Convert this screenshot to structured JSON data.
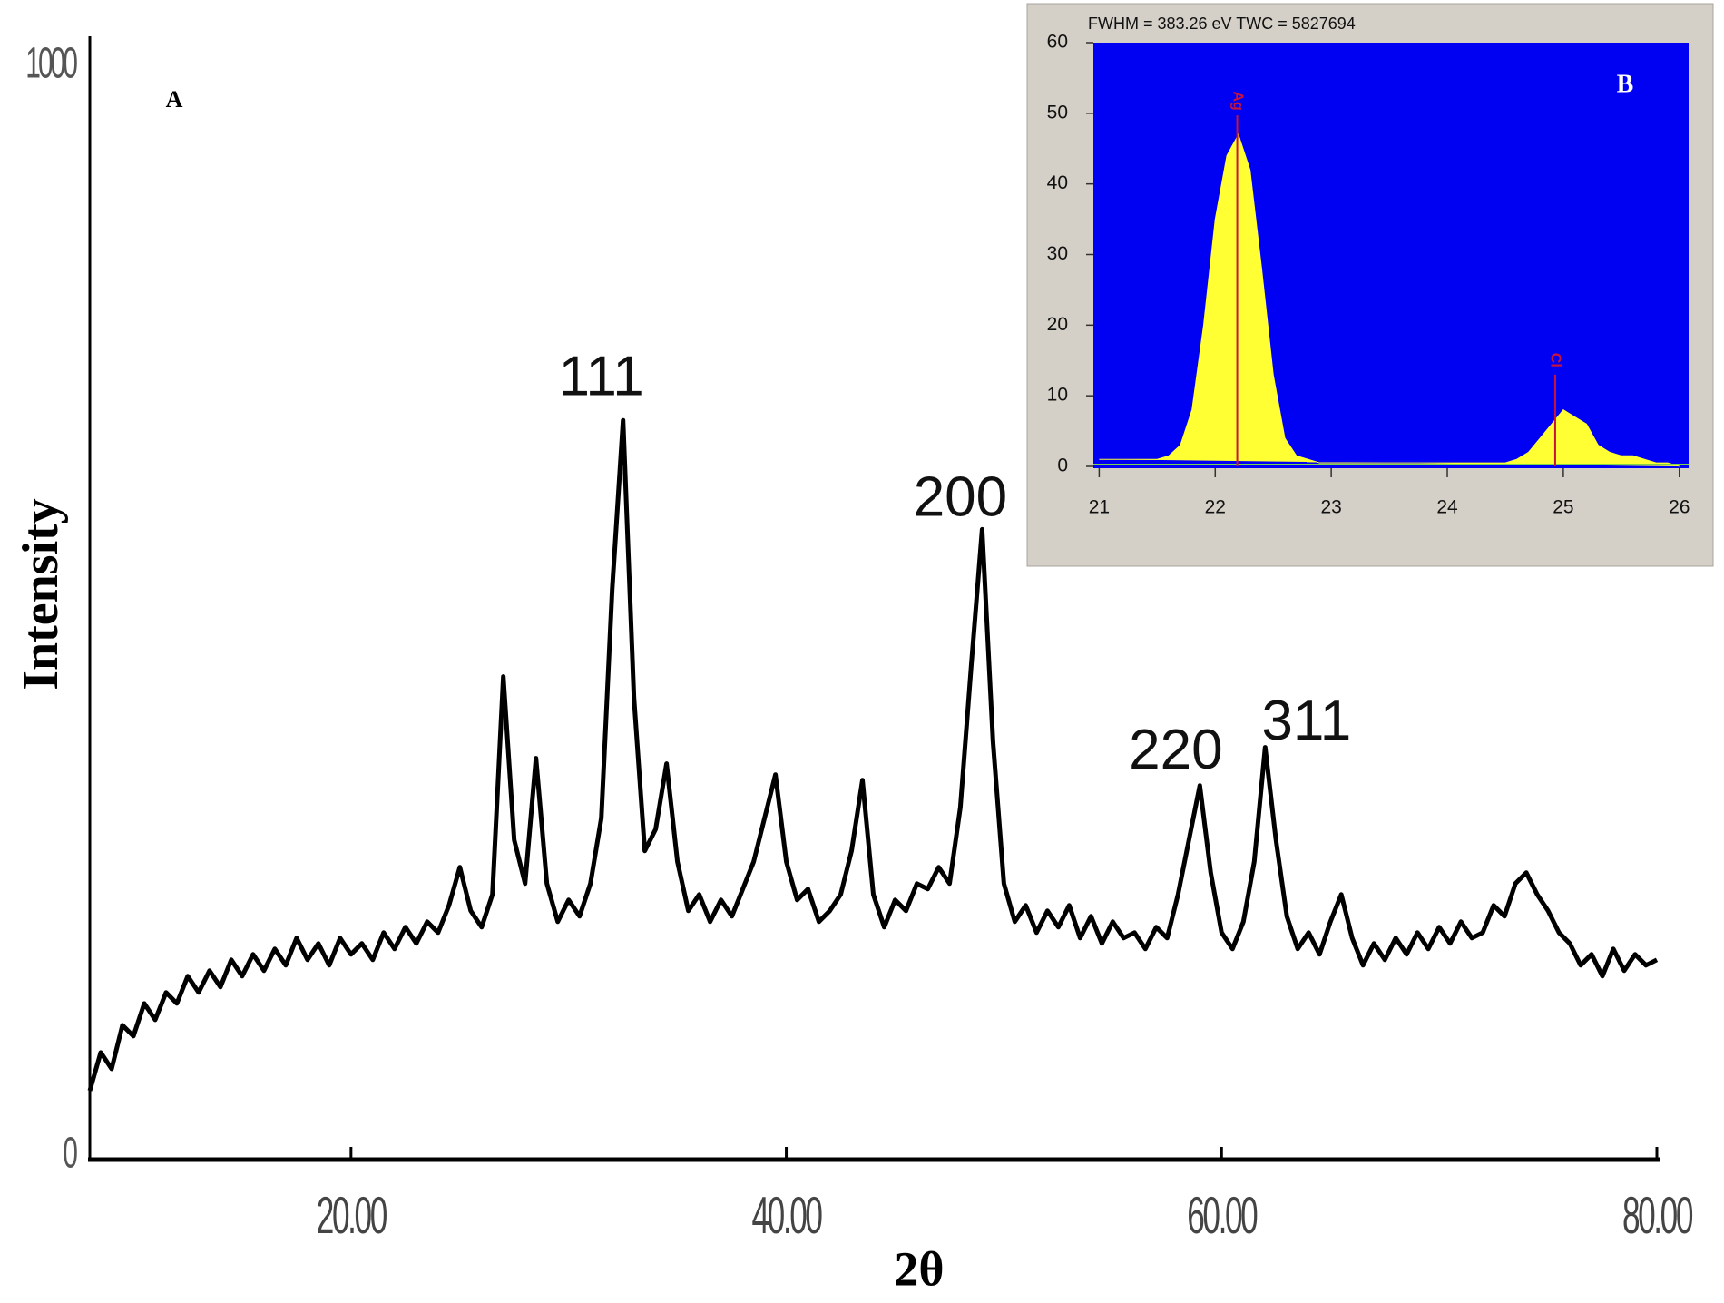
{
  "chart_data": [
    {
      "type": "line",
      "panel_label": "A",
      "xlabel": "2θ",
      "ylabel": "Intensity",
      "color": "#000000",
      "xlim": [
        8,
        80
      ],
      "ylim": [
        0,
        1000
      ],
      "xticks": [
        {
          "value": 20,
          "label": "20.00"
        },
        {
          "value": 40,
          "label": "40.00"
        },
        {
          "value": 60,
          "label": "60.00"
        },
        {
          "value": 80,
          "label": "80.00"
        }
      ],
      "yticks": [
        0,
        1000
      ],
      "grid": false,
      "x": [
        8,
        8.5,
        9,
        9.5,
        10,
        10.5,
        11,
        11.5,
        12,
        12.5,
        13,
        13.5,
        14,
        14.5,
        15,
        15.5,
        16,
        16.5,
        17,
        17.5,
        18,
        18.5,
        19,
        19.5,
        20,
        20.5,
        21,
        21.5,
        22,
        22.5,
        23,
        23.5,
        24,
        24.5,
        25,
        25.5,
        26,
        26.5,
        27,
        27.5,
        28,
        28.5,
        29,
        29.5,
        30,
        30.5,
        31,
        31.5,
        32,
        32.5,
        33,
        33.5,
        34,
        34.5,
        35,
        35.5,
        36,
        36.5,
        37,
        37.5,
        38,
        38.5,
        39,
        39.5,
        40,
        40.5,
        41,
        41.5,
        42,
        42.5,
        43,
        43.5,
        44,
        44.5,
        45,
        45.5,
        46,
        46.5,
        47,
        47.5,
        48,
        48.5,
        49,
        49.5,
        50,
        50.5,
        51,
        51.5,
        52,
        52.5,
        53,
        53.5,
        54,
        54.5,
        55,
        55.5,
        56,
        56.5,
        57,
        57.5,
        58,
        58.5,
        59,
        59.5,
        60,
        60.5,
        61,
        61.5,
        62,
        62.5,
        63,
        63.5,
        64,
        64.5,
        65,
        65.5,
        66,
        66.5,
        67,
        67.5,
        68,
        68.5,
        69,
        69.5,
        70,
        70.5,
        71,
        71.5,
        72,
        72.5,
        73,
        73.5,
        74,
        74.5,
        75,
        75.5,
        76,
        76.5,
        77,
        77.5,
        78,
        78.5,
        79,
        79.5,
        80
      ],
      "values": [
        60,
        95,
        80,
        120,
        110,
        140,
        125,
        150,
        140,
        165,
        150,
        170,
        155,
        180,
        165,
        185,
        170,
        190,
        175,
        200,
        180,
        195,
        175,
        200,
        185,
        195,
        180,
        205,
        190,
        210,
        195,
        215,
        205,
        230,
        265,
        225,
        210,
        240,
        440,
        290,
        250,
        365,
        250,
        215,
        235,
        220,
        250,
        310,
        520,
        675,
        420,
        280,
        300,
        360,
        270,
        225,
        240,
        215,
        235,
        220,
        245,
        270,
        310,
        350,
        270,
        235,
        245,
        215,
        225,
        240,
        280,
        345,
        240,
        210,
        235,
        225,
        250,
        245,
        265,
        250,
        320,
        450,
        575,
        380,
        250,
        215,
        230,
        205,
        225,
        210,
        230,
        200,
        220,
        195,
        215,
        200,
        205,
        190,
        210,
        200,
        240,
        290,
        340,
        260,
        205,
        190,
        215,
        270,
        375,
        290,
        220,
        190,
        205,
        185,
        215,
        240,
        200,
        175,
        195,
        180,
        200,
        185,
        205,
        190,
        210,
        195,
        215,
        200,
        205,
        230,
        220,
        250,
        260,
        240,
        225,
        205,
        195,
        175,
        185,
        165,
        190,
        170,
        185,
        175,
        180
      ],
      "annotations": [
        {
          "text": "111",
          "x": 31.5,
          "y": 712
        },
        {
          "text": "200",
          "x": 48,
          "y": 601
        },
        {
          "text": "220",
          "x": 57.9,
          "y": 369
        },
        {
          "text": "311",
          "x": 63.9,
          "y": 396
        }
      ]
    },
    {
      "type": "area",
      "title": "FWHM = 383.26 eV TWC = 5827694",
      "panel_label": "B",
      "background": "#0000f2",
      "color": "#ffff33",
      "xlim": [
        20.95,
        26.08
      ],
      "ylim": [
        0,
        60
      ],
      "xticks": [
        21,
        22,
        23,
        24,
        25,
        26
      ],
      "yticks": [
        0,
        10,
        20,
        30,
        40,
        50,
        60
      ],
      "x": [
        21,
        21.1,
        21.2,
        21.3,
        21.4,
        21.5,
        21.6,
        21.7,
        21.8,
        21.9,
        22,
        22.1,
        22.2,
        22.3,
        22.4,
        22.5,
        22.6,
        22.7,
        22.8,
        22.9,
        23,
        23.1,
        23.2,
        23.3,
        23.4,
        23.5,
        23.6,
        23.7,
        23.8,
        23.9,
        24,
        24.1,
        24.2,
        24.3,
        24.4,
        24.5,
        24.6,
        24.7,
        24.8,
        24.9,
        25,
        25.1,
        25.2,
        25.3,
        25.4,
        25.5,
        25.6,
        25.7,
        25.8,
        25.9,
        26
      ],
      "values": [
        1,
        1,
        1,
        1,
        1,
        1,
        1.5,
        3,
        8,
        20,
        35,
        44,
        47,
        42,
        28,
        13,
        4,
        1.5,
        1,
        0.5,
        0.5,
        0.5,
        0.5,
        0.5,
        0.5,
        0.5,
        0.5,
        0.5,
        0.5,
        0.5,
        0.5,
        0.5,
        0.5,
        0.5,
        0.5,
        0.5,
        1,
        2,
        4,
        6,
        8,
        7,
        6,
        3,
        2,
        1.5,
        1.5,
        1,
        0.5,
        0.5,
        0
      ],
      "marker_color": "#c8143c",
      "markers": [
        {
          "label": "Ag",
          "x": 22.19,
          "y": 49.7
        },
        {
          "label": "Cl",
          "x": 24.93,
          "y": 13
        }
      ]
    }
  ]
}
